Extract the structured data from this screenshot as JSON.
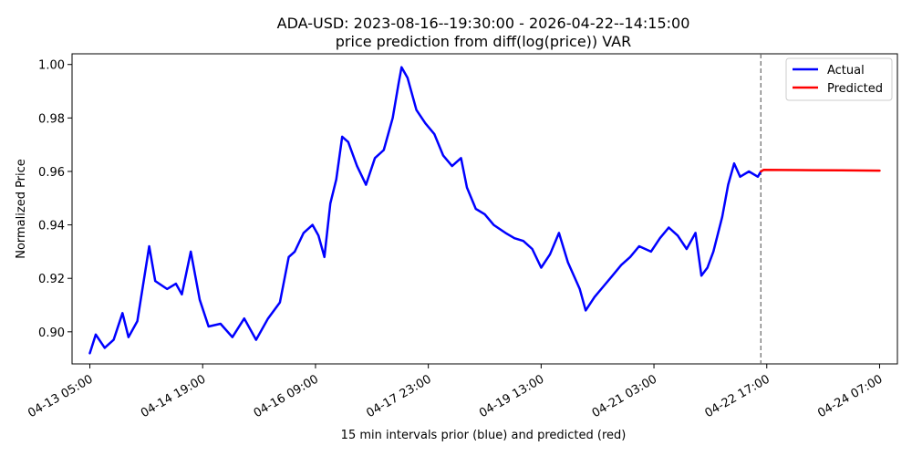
{
  "chart_data": {
    "type": "line",
    "title": "ADA-USD: 2023-08-16--19:30:00 - 2026-04-22--14:15:00",
    "subtitle": "price prediction from diff(log(price)) VAR",
    "xlabel": "15 min intervals prior (blue) and predicted (red)",
    "ylabel": "Normalized Price",
    "x_ticks": [
      "04-13 05:00",
      "04-14 19:00",
      "04-16 09:00",
      "04-17 23:00",
      "04-19 13:00",
      "04-21 03:00",
      "04-22 17:00",
      "04-24 07:00"
    ],
    "y_ticks": [
      "0.90",
      "0.92",
      "0.94",
      "0.96",
      "0.98",
      "1.00"
    ],
    "y_tick_values": [
      0.9,
      0.92,
      0.94,
      0.96,
      0.98,
      1.0
    ],
    "ylim": [
      0.888,
      1.004
    ],
    "xlim": [
      "04-12 23:00",
      "04-24 13:00"
    ],
    "grid": false,
    "legend_position": "top-right",
    "divider_x": "04-22 15:00",
    "series": [
      {
        "name": "Actual",
        "color": "#0000ff",
        "points": [
          [
            "04-13 05:00",
            0.892
          ],
          [
            "04-13 07:00",
            0.899
          ],
          [
            "04-13 10:00",
            0.894
          ],
          [
            "04-13 13:00",
            0.897
          ],
          [
            "04-13 16:00",
            0.907
          ],
          [
            "04-13 18:00",
            0.898
          ],
          [
            "04-13 21:00",
            0.904
          ],
          [
            "04-14 01:00",
            0.932
          ],
          [
            "04-14 03:00",
            0.919
          ],
          [
            "04-14 07:00",
            0.916
          ],
          [
            "04-14 10:00",
            0.918
          ],
          [
            "04-14 12:00",
            0.914
          ],
          [
            "04-14 15:00",
            0.93
          ],
          [
            "04-14 18:00",
            0.912
          ],
          [
            "04-14 21:00",
            0.902
          ],
          [
            "04-15 01:00",
            0.903
          ],
          [
            "04-15 05:00",
            0.898
          ],
          [
            "04-15 09:00",
            0.905
          ],
          [
            "04-15 13:00",
            0.897
          ],
          [
            "04-15 17:00",
            0.905
          ],
          [
            "04-15 21:00",
            0.911
          ],
          [
            "04-16 00:00",
            0.928
          ],
          [
            "04-16 02:00",
            0.93
          ],
          [
            "04-16 05:00",
            0.937
          ],
          [
            "04-16 08:00",
            0.94
          ],
          [
            "04-16 10:00",
            0.936
          ],
          [
            "04-16 12:00",
            0.928
          ],
          [
            "04-16 14:00",
            0.948
          ],
          [
            "04-16 16:00",
            0.957
          ],
          [
            "04-16 18:00",
            0.973
          ],
          [
            "04-16 20:00",
            0.971
          ],
          [
            "04-16 23:00",
            0.962
          ],
          [
            "04-17 02:00",
            0.955
          ],
          [
            "04-17 05:00",
            0.965
          ],
          [
            "04-17 08:00",
            0.968
          ],
          [
            "04-17 11:00",
            0.98
          ],
          [
            "04-17 13:00",
            0.993
          ],
          [
            "04-17 14:00",
            0.999
          ],
          [
            "04-17 16:00",
            0.995
          ],
          [
            "04-17 19:00",
            0.983
          ],
          [
            "04-17 22:00",
            0.978
          ],
          [
            "04-18 01:00",
            0.974
          ],
          [
            "04-18 04:00",
            0.966
          ],
          [
            "04-18 07:00",
            0.962
          ],
          [
            "04-18 10:00",
            0.965
          ],
          [
            "04-18 12:00",
            0.954
          ],
          [
            "04-18 15:00",
            0.946
          ],
          [
            "04-18 18:00",
            0.944
          ],
          [
            "04-18 21:00",
            0.94
          ],
          [
            "04-19 01:00",
            0.937
          ],
          [
            "04-19 04:00",
            0.935
          ],
          [
            "04-19 07:00",
            0.934
          ],
          [
            "04-19 10:00",
            0.931
          ],
          [
            "04-19 13:00",
            0.924
          ],
          [
            "04-19 16:00",
            0.929
          ],
          [
            "04-19 19:00",
            0.937
          ],
          [
            "04-19 22:00",
            0.926
          ],
          [
            "04-20 02:00",
            0.916
          ],
          [
            "04-20 04:00",
            0.908
          ],
          [
            "04-20 07:00",
            0.913
          ],
          [
            "04-20 10:00",
            0.917
          ],
          [
            "04-20 13:00",
            0.921
          ],
          [
            "04-20 16:00",
            0.925
          ],
          [
            "04-20 19:00",
            0.928
          ],
          [
            "04-20 22:00",
            0.932
          ],
          [
            "04-21 02:00",
            0.93
          ],
          [
            "04-21 05:00",
            0.935
          ],
          [
            "04-21 08:00",
            0.939
          ],
          [
            "04-21 11:00",
            0.936
          ],
          [
            "04-21 14:00",
            0.931
          ],
          [
            "04-21 17:00",
            0.937
          ],
          [
            "04-21 19:00",
            0.921
          ],
          [
            "04-21 21:00",
            0.924
          ],
          [
            "04-21 23:00",
            0.93
          ],
          [
            "04-22 02:00",
            0.943
          ],
          [
            "04-22 04:00",
            0.955
          ],
          [
            "04-22 06:00",
            0.963
          ],
          [
            "04-22 08:00",
            0.958
          ],
          [
            "04-22 11:00",
            0.96
          ],
          [
            "04-22 14:00",
            0.958
          ],
          [
            "04-22 15:00",
            0.96
          ]
        ]
      },
      {
        "name": "Predicted",
        "color": "#ff0000",
        "points": [
          [
            "04-22 15:00",
            0.96
          ],
          [
            "04-22 16:00",
            0.9606
          ],
          [
            "04-23 04:00",
            0.9605
          ],
          [
            "04-23 18:00",
            0.9604
          ],
          [
            "04-24 07:00",
            0.9603
          ]
        ]
      }
    ]
  }
}
